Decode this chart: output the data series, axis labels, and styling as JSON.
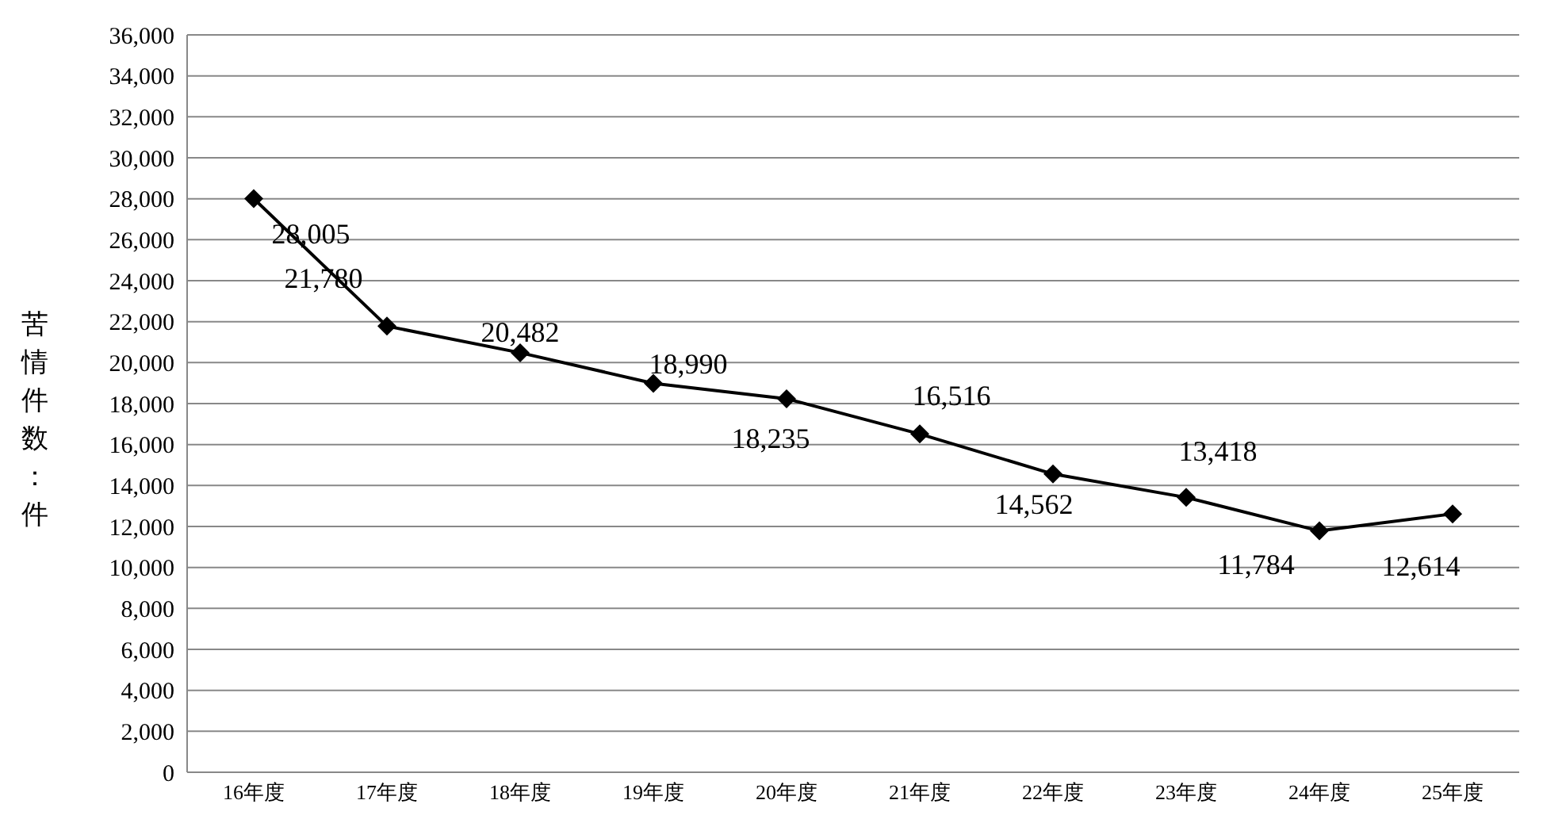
{
  "chart_data": {
    "type": "line",
    "ylabel": "苦情件数：件",
    "categories": [
      "16年度",
      "17年度",
      "18年度",
      "19年度",
      "20年度",
      "21年度",
      "22年度",
      "23年度",
      "24年度",
      "25年度"
    ],
    "series": [
      {
        "color": "#000000",
        "values": [
          28005,
          21780,
          20482,
          18990,
          18235,
          16516,
          14562,
          13418,
          11784,
          12614
        ],
        "value_labels": [
          "28,005",
          "21,780",
          "20,482",
          "18,990",
          "18,235",
          "16,516",
          "14,562",
          "13,418",
          "11,784",
          "12,614"
        ]
      }
    ],
    "ylim": [
      0,
      36000
    ],
    "yticks": [
      0,
      {
        "value": 2000,
        "label": "2,000"
      },
      {
        "value": 4000,
        "label": "4,000"
      },
      {
        "value": 6000,
        "label": "6,000"
      },
      {
        "value": 8000,
        "label": "8,000"
      },
      {
        "value": 10000,
        "label": "10,000"
      },
      {
        "value": 12000,
        "label": "12,000"
      },
      {
        "value": 14000,
        "label": "14,000"
      },
      {
        "value": 16000,
        "label": "16,000"
      },
      {
        "value": 18000,
        "label": "18,000"
      },
      {
        "value": 20000,
        "label": "20,000"
      },
      {
        "value": 22000,
        "label": "22,000"
      },
      {
        "value": 24000,
        "label": "24,000"
      },
      {
        "value": 26000,
        "label": "26,000"
      },
      {
        "value": 28000,
        "label": "28,000"
      },
      {
        "value": 30000,
        "label": "30,000"
      },
      {
        "value": 32000,
        "label": "32,000"
      },
      {
        "value": 34000,
        "label": "34,000"
      },
      {
        "value": 36000,
        "label": "36,000"
      }
    ],
    "grid": "y",
    "marker": "diamond",
    "line_style": "solid",
    "legend": false
  }
}
